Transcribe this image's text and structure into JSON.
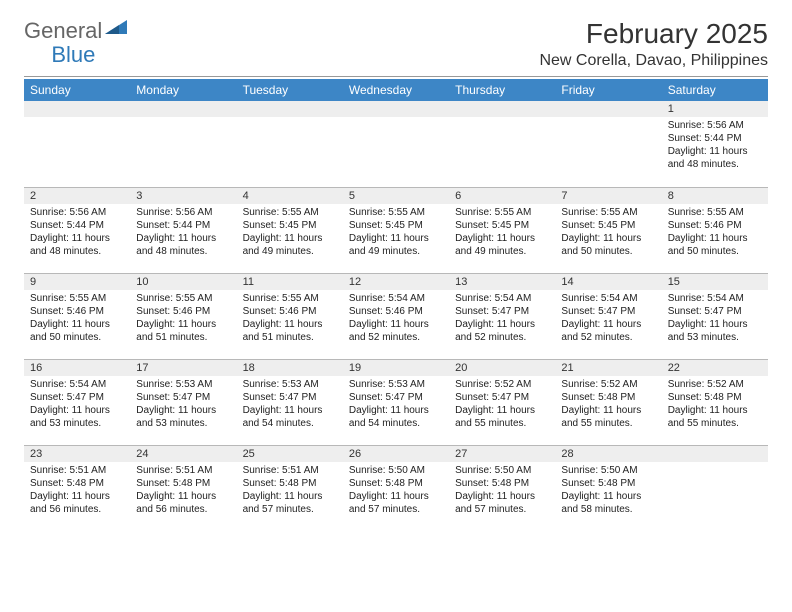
{
  "brand": {
    "part1": "General",
    "part2": "Blue"
  },
  "title": "February 2025",
  "location": "New Corella, Davao, Philippines",
  "dayHeaders": [
    "Sunday",
    "Monday",
    "Tuesday",
    "Wednesday",
    "Thursday",
    "Friday",
    "Saturday"
  ],
  "colors": {
    "header_bg": "#3d86c6",
    "header_text": "#ffffff",
    "daynum_bg": "#eeeeee",
    "border": "#b8b8b8",
    "logo_blue": "#2f7ab8",
    "logo_gray": "#666666"
  },
  "weeks": [
    [
      {
        "n": "",
        "lines": []
      },
      {
        "n": "",
        "lines": []
      },
      {
        "n": "",
        "lines": []
      },
      {
        "n": "",
        "lines": []
      },
      {
        "n": "",
        "lines": []
      },
      {
        "n": "",
        "lines": []
      },
      {
        "n": "1",
        "lines": [
          "Sunrise: 5:56 AM",
          "Sunset: 5:44 PM",
          "Daylight: 11 hours and 48 minutes."
        ]
      }
    ],
    [
      {
        "n": "2",
        "lines": [
          "Sunrise: 5:56 AM",
          "Sunset: 5:44 PM",
          "Daylight: 11 hours and 48 minutes."
        ]
      },
      {
        "n": "3",
        "lines": [
          "Sunrise: 5:56 AM",
          "Sunset: 5:44 PM",
          "Daylight: 11 hours and 48 minutes."
        ]
      },
      {
        "n": "4",
        "lines": [
          "Sunrise: 5:55 AM",
          "Sunset: 5:45 PM",
          "Daylight: 11 hours and 49 minutes."
        ]
      },
      {
        "n": "5",
        "lines": [
          "Sunrise: 5:55 AM",
          "Sunset: 5:45 PM",
          "Daylight: 11 hours and 49 minutes."
        ]
      },
      {
        "n": "6",
        "lines": [
          "Sunrise: 5:55 AM",
          "Sunset: 5:45 PM",
          "Daylight: 11 hours and 49 minutes."
        ]
      },
      {
        "n": "7",
        "lines": [
          "Sunrise: 5:55 AM",
          "Sunset: 5:45 PM",
          "Daylight: 11 hours and 50 minutes."
        ]
      },
      {
        "n": "8",
        "lines": [
          "Sunrise: 5:55 AM",
          "Sunset: 5:46 PM",
          "Daylight: 11 hours and 50 minutes."
        ]
      }
    ],
    [
      {
        "n": "9",
        "lines": [
          "Sunrise: 5:55 AM",
          "Sunset: 5:46 PM",
          "Daylight: 11 hours and 50 minutes."
        ]
      },
      {
        "n": "10",
        "lines": [
          "Sunrise: 5:55 AM",
          "Sunset: 5:46 PM",
          "Daylight: 11 hours and 51 minutes."
        ]
      },
      {
        "n": "11",
        "lines": [
          "Sunrise: 5:55 AM",
          "Sunset: 5:46 PM",
          "Daylight: 11 hours and 51 minutes."
        ]
      },
      {
        "n": "12",
        "lines": [
          "Sunrise: 5:54 AM",
          "Sunset: 5:46 PM",
          "Daylight: 11 hours and 52 minutes."
        ]
      },
      {
        "n": "13",
        "lines": [
          "Sunrise: 5:54 AM",
          "Sunset: 5:47 PM",
          "Daylight: 11 hours and 52 minutes."
        ]
      },
      {
        "n": "14",
        "lines": [
          "Sunrise: 5:54 AM",
          "Sunset: 5:47 PM",
          "Daylight: 11 hours and 52 minutes."
        ]
      },
      {
        "n": "15",
        "lines": [
          "Sunrise: 5:54 AM",
          "Sunset: 5:47 PM",
          "Daylight: 11 hours and 53 minutes."
        ]
      }
    ],
    [
      {
        "n": "16",
        "lines": [
          "Sunrise: 5:54 AM",
          "Sunset: 5:47 PM",
          "Daylight: 11 hours and 53 minutes."
        ]
      },
      {
        "n": "17",
        "lines": [
          "Sunrise: 5:53 AM",
          "Sunset: 5:47 PM",
          "Daylight: 11 hours and 53 minutes."
        ]
      },
      {
        "n": "18",
        "lines": [
          "Sunrise: 5:53 AM",
          "Sunset: 5:47 PM",
          "Daylight: 11 hours and 54 minutes."
        ]
      },
      {
        "n": "19",
        "lines": [
          "Sunrise: 5:53 AM",
          "Sunset: 5:47 PM",
          "Daylight: 11 hours and 54 minutes."
        ]
      },
      {
        "n": "20",
        "lines": [
          "Sunrise: 5:52 AM",
          "Sunset: 5:47 PM",
          "Daylight: 11 hours and 55 minutes."
        ]
      },
      {
        "n": "21",
        "lines": [
          "Sunrise: 5:52 AM",
          "Sunset: 5:48 PM",
          "Daylight: 11 hours and 55 minutes."
        ]
      },
      {
        "n": "22",
        "lines": [
          "Sunrise: 5:52 AM",
          "Sunset: 5:48 PM",
          "Daylight: 11 hours and 55 minutes."
        ]
      }
    ],
    [
      {
        "n": "23",
        "lines": [
          "Sunrise: 5:51 AM",
          "Sunset: 5:48 PM",
          "Daylight: 11 hours and 56 minutes."
        ]
      },
      {
        "n": "24",
        "lines": [
          "Sunrise: 5:51 AM",
          "Sunset: 5:48 PM",
          "Daylight: 11 hours and 56 minutes."
        ]
      },
      {
        "n": "25",
        "lines": [
          "Sunrise: 5:51 AM",
          "Sunset: 5:48 PM",
          "Daylight: 11 hours and 57 minutes."
        ]
      },
      {
        "n": "26",
        "lines": [
          "Sunrise: 5:50 AM",
          "Sunset: 5:48 PM",
          "Daylight: 11 hours and 57 minutes."
        ]
      },
      {
        "n": "27",
        "lines": [
          "Sunrise: 5:50 AM",
          "Sunset: 5:48 PM",
          "Daylight: 11 hours and 57 minutes."
        ]
      },
      {
        "n": "28",
        "lines": [
          "Sunrise: 5:50 AM",
          "Sunset: 5:48 PM",
          "Daylight: 11 hours and 58 minutes."
        ]
      },
      {
        "n": "",
        "lines": []
      }
    ]
  ]
}
